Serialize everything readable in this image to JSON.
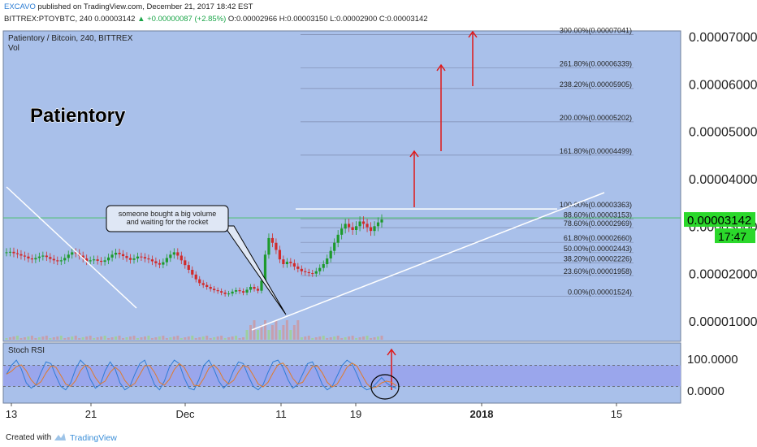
{
  "header": {
    "author": "EXCAVO",
    "published": " published on TradingView.com, December 21, 2017 18:42 EST",
    "symbol_line_a": "BITTREX:PTOYBTC, 240  0.00003142",
    "change": "▲ +0.00000087 (+2.85%)",
    "ohlc": " O:0.00002966  H:0.00003150  L:0.00002900  C:0.00003142"
  },
  "footer": {
    "created_with": "Created with",
    "brand": "TradingView"
  },
  "chart_data": {
    "type": "candlestick",
    "title": "Patientory / Bitcoin, 240, BITTREX",
    "subtitle": "Vol",
    "watermark": "Patientory",
    "y_ticks": [
      "0.00007000",
      "0.00006000",
      "0.00005000",
      "0.00004000",
      "0.00003000",
      "0.00002000",
      "0.00001000"
    ],
    "ylim": [
      5e-06,
      7.5e-05
    ],
    "last_price": "0.00003142",
    "countdown": "17:47",
    "x_ticks": [
      "13",
      "21",
      "Dec",
      "11",
      "19",
      "2018",
      "15"
    ],
    "fib_levels": [
      {
        "pct": "300.00%",
        "value": 7.041e-05,
        "label": "300.00%(0.00007041)"
      },
      {
        "pct": "261.80%",
        "value": 6.339e-05,
        "label": "261.80%(0.00006339)"
      },
      {
        "pct": "238.20%",
        "value": 5.905e-05,
        "label": "238.20%(0.00005905)"
      },
      {
        "pct": "200.00%",
        "value": 5.202e-05,
        "label": "200.00%(0.00005202)"
      },
      {
        "pct": "161.80%",
        "value": 4.499e-05,
        "label": "161.80%(0.00004499)"
      },
      {
        "pct": "100.00%",
        "value": 3.363e-05,
        "label": "100.00%(0.00003363)"
      },
      {
        "pct": "88.60%",
        "value": 3.153e-05,
        "label": "88.60%(0.00003153)"
      },
      {
        "pct": "78.60%",
        "value": 2.969e-05,
        "label": "78.60%(0.00002969)"
      },
      {
        "pct": "61.80%",
        "value": 2.66e-05,
        "label": "61.80%(0.00002660)"
      },
      {
        "pct": "50.00%",
        "value": 2.443e-05,
        "label": "50.00%(0.00002443)"
      },
      {
        "pct": "38.20%",
        "value": 2.226e-05,
        "label": "38.20%(0.00002226)"
      },
      {
        "pct": "23.60%",
        "value": 1.958e-05,
        "label": "23.60%(0.00001958)"
      },
      {
        "pct": "0.00%",
        "value": 1.524e-05,
        "label": "0.00%(0.00001524)"
      }
    ],
    "annotation": "someone bought a big volume\nand waiting for the rocket",
    "stoch_rsi": {
      "title": "Stoch RSI",
      "y_ticks": [
        "100.0000",
        "0.0000"
      ],
      "k": [
        55,
        80,
        95,
        70,
        30,
        15,
        25,
        60,
        90,
        85,
        50,
        20,
        10,
        30,
        70,
        95,
        80,
        40,
        15,
        25,
        65,
        90,
        70,
        30,
        10,
        20,
        55,
        85,
        95,
        60,
        25,
        10,
        35,
        75,
        95,
        85,
        45,
        15,
        10,
        40,
        80,
        95,
        70,
        35,
        15,
        30,
        65,
        90,
        85,
        50,
        20,
        10,
        25,
        60,
        90,
        95,
        75,
        40,
        15,
        25,
        55,
        85,
        90,
        60,
        25,
        10,
        20,
        50,
        80,
        95,
        85,
        55,
        20,
        10,
        15,
        30,
        45,
        30,
        20,
        15
      ]
    },
    "price": [
      2.45e-05,
      2.46e-05,
      2.43e-05,
      2.41e-05,
      2.38e-05,
      2.36e-05,
      2.32e-05,
      2.3e-05,
      2.33e-05,
      2.36e-05,
      2.38e-05,
      2.35e-05,
      2.31e-05,
      2.28e-05,
      2.26e-05,
      2.28e-05,
      2.33e-05,
      2.4e-05,
      2.45e-05,
      2.43e-05,
      2.38e-05,
      2.32e-05,
      2.26e-05,
      2.28e-05,
      2.3e-05,
      2.27e-05,
      2.25e-05,
      2.28e-05,
      2.34e-05,
      2.4e-05,
      2.44e-05,
      2.41e-05,
      2.37e-05,
      2.33e-05,
      2.29e-05,
      2.32e-05,
      2.36e-05,
      2.35e-05,
      2.32e-05,
      2.3e-05,
      2.26e-05,
      2.22e-05,
      2.19e-05,
      2.24e-05,
      2.33e-05,
      2.4e-05,
      2.45e-05,
      2.38e-05,
      2.28e-05,
      2.18e-05,
      2.08e-05,
      1.98e-05,
      1.88e-05,
      1.8e-05,
      1.76e-05,
      1.72e-05,
      1.68e-05,
      1.65e-05,
      1.63e-05,
      1.6e-05,
      1.57e-05,
      1.58e-05,
      1.62e-05,
      1.65e-05,
      1.63e-05,
      1.6e-05,
      1.66e-05,
      1.72e-05,
      1.68e-05,
      1.64e-05,
      1.85e-05,
      2.4e-05,
      2.75e-05,
      2.65e-05,
      2.5e-05,
      2.3e-05,
      2.2e-05,
      2.25e-05,
      2.22e-05,
      2.15e-05,
      2.1e-05,
      2.05e-05,
      2.03e-05,
      2.01e-05,
      2e-05,
      2.05e-05,
      2.12e-05,
      2.2e-05,
      2.32e-05,
      2.48e-05,
      2.65e-05,
      2.82e-05,
      2.95e-05,
      3.05e-05,
      2.98e-05,
      2.92e-05,
      3e-05,
      3.1e-05,
      3.05e-05,
      2.98e-05,
      2.9e-05,
      3e-05,
      3.08e-05,
      3.14e-05
    ]
  }
}
